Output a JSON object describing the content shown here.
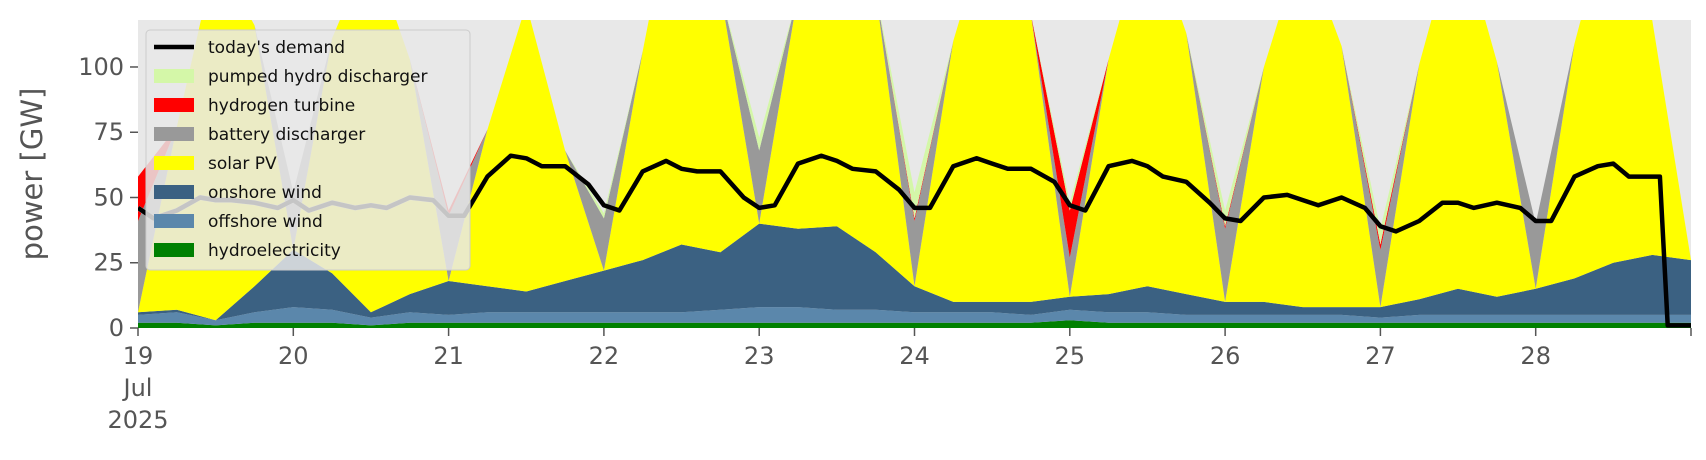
{
  "chart_data": {
    "type": "area",
    "title": "",
    "xlabel": "",
    "ylabel": "power [GW]",
    "x_start": "2025-07-19T00:00",
    "x_end": "2025-07-29T00:00",
    "xlim_days": [
      19,
      29
    ],
    "ylim": [
      0,
      118
    ],
    "y_ticks": [
      0,
      25,
      50,
      75,
      100
    ],
    "y_tick_labels": [
      "0",
      "25",
      "50",
      "75",
      "100"
    ],
    "x_ticks": [
      {
        "day": 19,
        "label": "19",
        "sub": [
          "Jul",
          "2025"
        ]
      },
      {
        "day": 20,
        "label": "20"
      },
      {
        "day": 21,
        "label": "21"
      },
      {
        "day": 22,
        "label": "22"
      },
      {
        "day": 23,
        "label": "23"
      },
      {
        "day": 24,
        "label": "24"
      },
      {
        "day": 25,
        "label": "25"
      },
      {
        "day": 26,
        "label": "26"
      },
      {
        "day": 27,
        "label": "27"
      },
      {
        "day": 28,
        "label": "28"
      }
    ],
    "grid": false,
    "legend_position": "top-left",
    "plot_background": "#e8e8e8",
    "legend": [
      {
        "name": "today's demand",
        "color": "#000000",
        "kind": "line"
      },
      {
        "name": "pumped hydro discharger",
        "color": "#d4f7a8",
        "kind": "patch"
      },
      {
        "name": "hydrogen turbine",
        "color": "#ff0000",
        "kind": "patch"
      },
      {
        "name": "battery discharger",
        "color": "#999999",
        "kind": "patch"
      },
      {
        "name": "solar PV",
        "color": "#ffff00",
        "kind": "patch"
      },
      {
        "name": "onshore wind",
        "color": "#3b6182",
        "kind": "patch"
      },
      {
        "name": "offshore wind",
        "color": "#5b87ab",
        "kind": "patch"
      },
      {
        "name": "hydroelectricity",
        "color": "#008000",
        "kind": "patch"
      }
    ],
    "stack_order": [
      "hydroelectricity",
      "offshore wind",
      "onshore wind",
      "solar PV",
      "battery discharger",
      "hydrogen turbine",
      "pumped hydro discharger"
    ],
    "x": [
      19.0,
      19.25,
      19.5,
      19.75,
      20.0,
      20.25,
      20.5,
      20.75,
      21.0,
      21.25,
      21.5,
      21.75,
      22.0,
      22.25,
      22.5,
      22.75,
      23.0,
      23.25,
      23.5,
      23.75,
      24.0,
      24.25,
      24.5,
      24.75,
      25.0,
      25.25,
      25.5,
      25.75,
      26.0,
      26.25,
      26.5,
      26.75,
      27.0,
      27.25,
      27.5,
      27.75,
      28.0,
      28.25,
      28.5,
      28.75,
      29.0
    ],
    "series": [
      {
        "name": "hydroelectricity",
        "color": "#008000",
        "values": [
          2,
          2,
          1,
          2,
          2,
          2,
          1,
          2,
          2,
          2,
          2,
          2,
          2,
          2,
          2,
          2,
          2,
          2,
          2,
          2,
          2,
          2,
          2,
          2,
          3,
          2,
          2,
          2,
          2,
          2,
          2,
          2,
          2,
          2,
          2,
          2,
          2,
          2,
          2,
          2,
          2
        ]
      },
      {
        "name": "offshore wind",
        "color": "#5b87ab",
        "values": [
          3,
          4,
          2,
          4,
          6,
          5,
          3,
          4,
          3,
          4,
          4,
          4,
          4,
          4,
          4,
          5,
          6,
          6,
          5,
          5,
          4,
          4,
          4,
          3,
          4,
          4,
          4,
          3,
          3,
          3,
          3,
          3,
          2,
          3,
          3,
          3,
          3,
          3,
          3,
          3,
          3
        ]
      },
      {
        "name": "onshore wind",
        "color": "#3b6182",
        "values": [
          1,
          1,
          0,
          10,
          22,
          14,
          2,
          7,
          13,
          10,
          8,
          12,
          16,
          20,
          26,
          22,
          32,
          30,
          32,
          22,
          10,
          4,
          4,
          5,
          5,
          7,
          10,
          8,
          5,
          5,
          3,
          3,
          4,
          6,
          10,
          7,
          10,
          14,
          20,
          23,
          21
        ]
      },
      {
        "name": "solar PV",
        "color": "#ffff00",
        "values": [
          0,
          70,
          140,
          100,
          0,
          90,
          140,
          90,
          0,
          60,
          110,
          50,
          0,
          80,
          150,
          100,
          0,
          90,
          150,
          100,
          0,
          100,
          150,
          110,
          0,
          90,
          140,
          100,
          0,
          90,
          140,
          100,
          0,
          90,
          140,
          90,
          0,
          90,
          140,
          90,
          0
        ]
      },
      {
        "name": "battery discharger",
        "color": "#999999",
        "values": [
          35,
          0,
          0,
          0,
          22,
          0,
          0,
          0,
          25,
          0,
          0,
          0,
          20,
          0,
          0,
          0,
          28,
          0,
          0,
          0,
          25,
          0,
          0,
          0,
          15,
          0,
          0,
          0,
          28,
          0,
          0,
          0,
          22,
          0,
          0,
          0,
          25,
          0,
          0,
          0,
          0
        ]
      },
      {
        "name": "hydrogen turbine",
        "color": "#ff0000",
        "values": [
          17,
          0,
          0,
          0,
          0,
          0,
          0,
          0,
          2,
          0,
          0,
          0,
          0,
          0,
          0,
          0,
          0,
          0,
          0,
          0,
          1,
          0,
          0,
          0,
          18,
          0,
          0,
          0,
          1,
          0,
          0,
          0,
          2,
          0,
          0,
          0,
          0,
          0,
          0,
          0,
          0
        ]
      },
      {
        "name": "pumped hydro discharger",
        "color": "#d4f7a8",
        "values": [
          0,
          0,
          0,
          0,
          0,
          0,
          0,
          0,
          0,
          0,
          0,
          0,
          2,
          0,
          0,
          0,
          5,
          0,
          0,
          0,
          10,
          0,
          0,
          0,
          3,
          0,
          0,
          0,
          6,
          0,
          0,
          0,
          6,
          0,
          0,
          0,
          0,
          0,
          0,
          0,
          0
        ]
      }
    ],
    "demand_line": {
      "name": "today's demand",
      "x": [
        19.0,
        19.1,
        19.25,
        19.4,
        19.5,
        19.6,
        19.75,
        19.9,
        20.0,
        20.1,
        20.25,
        20.4,
        20.5,
        20.6,
        20.75,
        20.9,
        21.0,
        21.1,
        21.25,
        21.4,
        21.5,
        21.6,
        21.75,
        21.9,
        22.0,
        22.1,
        22.25,
        22.4,
        22.5,
        22.6,
        22.75,
        22.9,
        23.0,
        23.1,
        23.25,
        23.4,
        23.5,
        23.6,
        23.75,
        23.9,
        24.0,
        24.1,
        24.25,
        24.4,
        24.5,
        24.6,
        24.75,
        24.9,
        25.0,
        25.1,
        25.25,
        25.4,
        25.5,
        25.6,
        25.75,
        25.9,
        26.0,
        26.1,
        26.25,
        26.4,
        26.5,
        26.6,
        26.75,
        26.9,
        27.0,
        27.1,
        27.25,
        27.4,
        27.5,
        27.6,
        27.75,
        27.9,
        28.0,
        28.1,
        28.25,
        28.4,
        28.5,
        28.6,
        28.75,
        28.8,
        28.85,
        29.0
      ],
      "values": [
        46,
        42,
        45,
        50,
        49,
        49,
        48,
        46,
        49,
        45,
        48,
        46,
        47,
        46,
        50,
        49,
        43,
        43,
        58,
        66,
        65,
        62,
        62,
        55,
        47,
        45,
        60,
        64,
        61,
        60,
        60,
        50,
        46,
        47,
        63,
        66,
        64,
        61,
        60,
        53,
        46,
        46,
        62,
        65,
        63,
        61,
        61,
        56,
        47,
        45,
        62,
        64,
        62,
        58,
        56,
        48,
        42,
        41,
        50,
        51,
        49,
        47,
        50,
        46,
        39,
        37,
        41,
        48,
        48,
        46,
        48,
        46,
        41,
        41,
        58,
        62,
        63,
        58,
        58,
        58,
        1,
        1
      ]
    },
    "faint_demand_line": {
      "x": [
        19.0,
        19.1,
        19.25,
        19.4,
        19.5,
        19.6,
        19.75,
        19.9,
        20.0,
        20.1,
        20.25,
        20.4,
        20.5,
        20.6,
        20.75,
        20.9,
        21.0
      ],
      "values": [
        46,
        42,
        45,
        50,
        49,
        49,
        48,
        46,
        49,
        45,
        48,
        46,
        47,
        46,
        50,
        49,
        43
      ]
    }
  }
}
